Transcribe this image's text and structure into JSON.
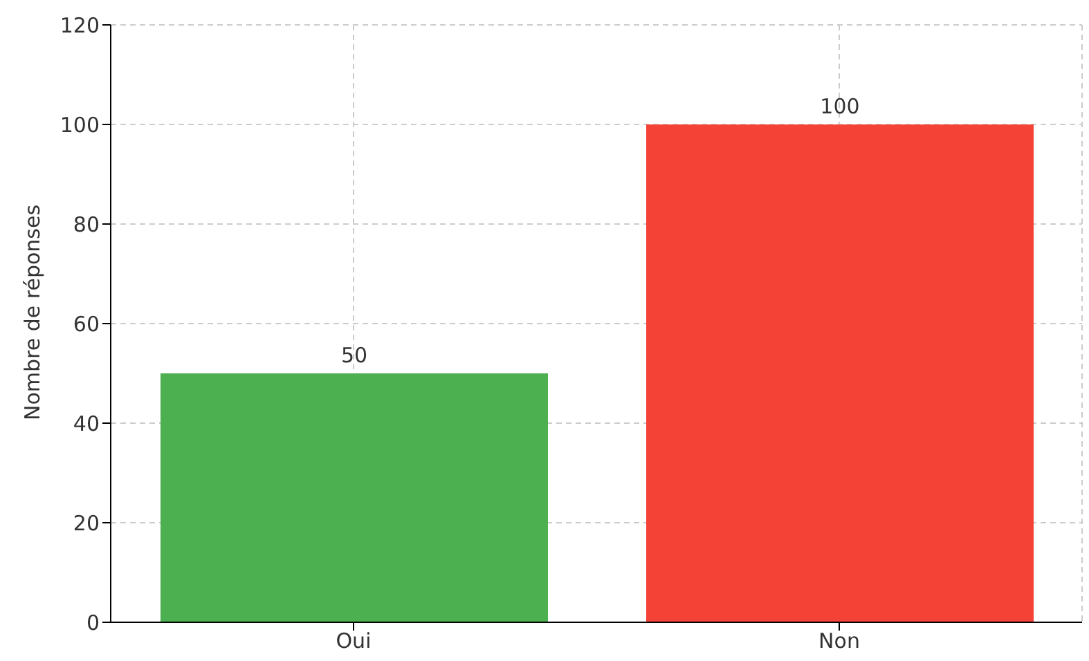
{
  "chart_data": {
    "type": "bar",
    "ylabel": "Nombre de réponses",
    "categories": [
      "Oui",
      "Non"
    ],
    "values": [
      50,
      100
    ],
    "colors": [
      "#4caf50",
      "#f44336"
    ],
    "ylim": [
      0,
      120
    ],
    "yticks": [
      0,
      20,
      40,
      60,
      80,
      100,
      120
    ],
    "grid": true,
    "data_labels": true
  }
}
